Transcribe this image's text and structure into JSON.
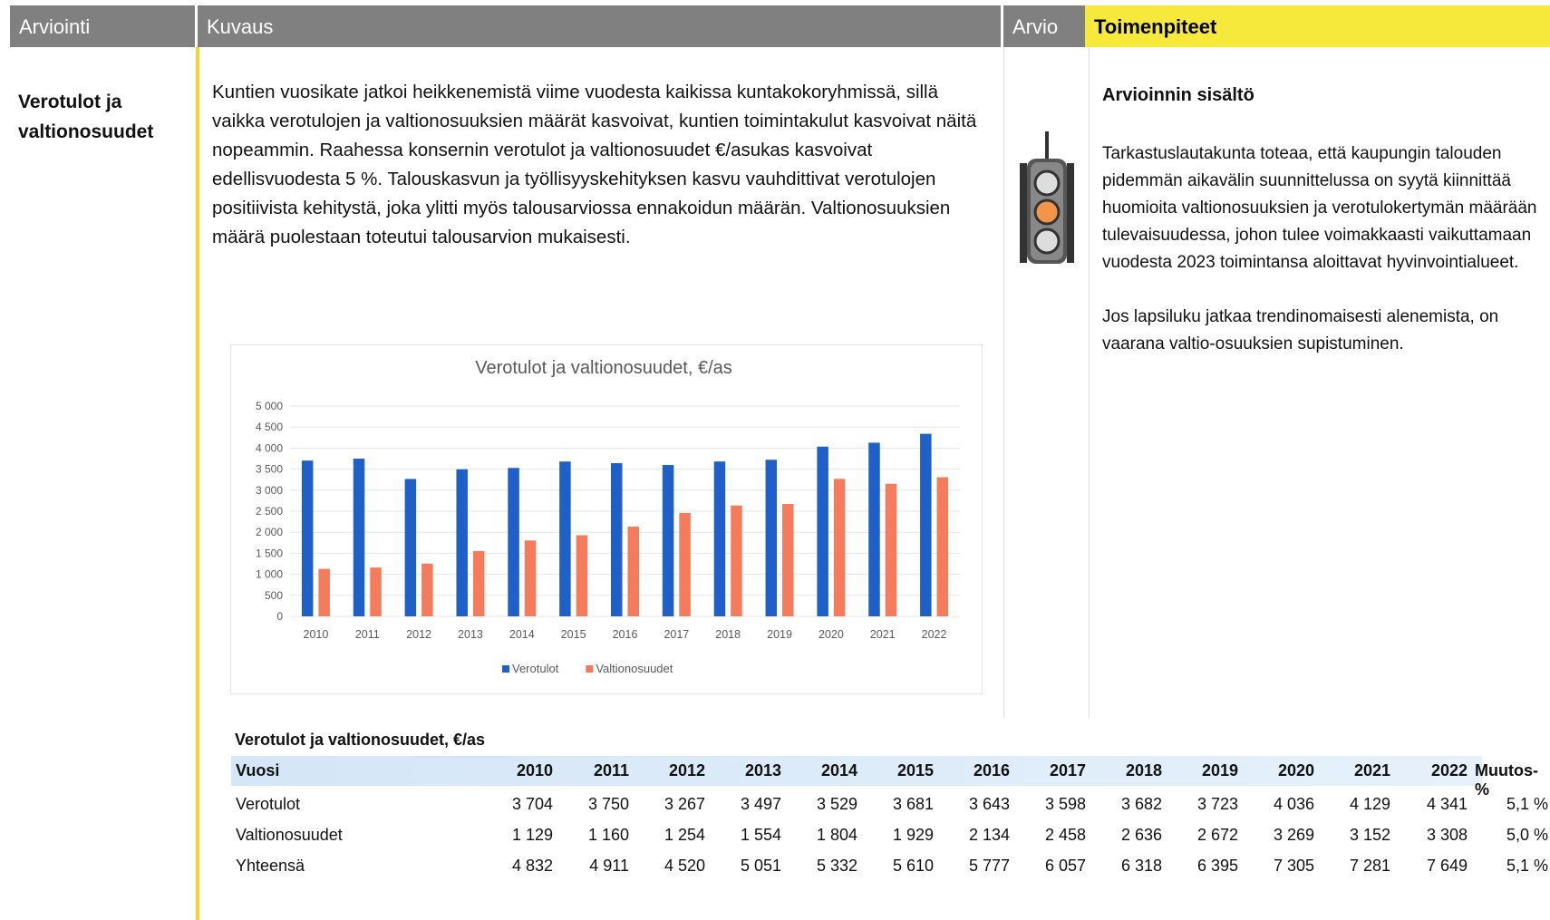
{
  "header": {
    "columns": [
      "Arviointi",
      "Kuvaus",
      "Arvio",
      "Toimenpiteet"
    ]
  },
  "topic": "Verotulot ja valtionosuudet",
  "description": "Kuntien vuosikate jatkoi heikkenemistä viime vuodesta kaikissa kuntakokoryhmissä, sillä vaikka verotulojen ja valtionosuuksien määrät kasvoivat, kuntien toimintakulut kasvoivat näitä nopeammin. Raahessa konsernin verotulot ja valtionosuudet €/asukas kasvoivat edellisvuodesta 5 %. Talouskasvun ja työllisyyskehityksen kasvu vauhdittivat verotulojen positiivista kehitystä, joka ylitti myös talousarviossa ennakoidun määrän. Valtionosuuksien määrä puolestaan toteutui talousarvion mukaisesti.",
  "chart": {
    "type": "bar",
    "title": "Verotulot ja valtionosuudet, €/as",
    "categories": [
      "2010",
      "2011",
      "2012",
      "2013",
      "2014",
      "2015",
      "2016",
      "2017",
      "2018",
      "2019",
      "2020",
      "2021",
      "2022"
    ],
    "series": [
      {
        "name": "Verotulot",
        "color": "#1f5fc8",
        "values": [
          3704,
          3750,
          3267,
          3497,
          3529,
          3681,
          3643,
          3598,
          3682,
          3723,
          4036,
          4129,
          4341
        ]
      },
      {
        "name": "Valtionosuudet",
        "color": "#f47b5c",
        "values": [
          1129,
          1160,
          1254,
          1554,
          1804,
          1929,
          2134,
          2458,
          2636,
          2672,
          3269,
          3152,
          3308
        ]
      }
    ],
    "ylim": [
      0,
      5000
    ],
    "yticks": [
      0,
      500,
      {
        "value": 1000,
        "label": "1 000"
      },
      {
        "value": 1500,
        "label": "1 500"
      },
      {
        "value": 2000,
        "label": "2 000"
      },
      {
        "value": 2500,
        "label": "2 500"
      },
      {
        "value": 3000,
        "label": "3 000"
      },
      {
        "value": 3500,
        "label": "3 500"
      },
      {
        "value": 4000,
        "label": "4 000"
      },
      {
        "value": 4500,
        "label": "4 500"
      },
      {
        "value": 5000,
        "label": "5 000"
      }
    ],
    "grid": true,
    "legend": "bottom"
  },
  "assessment": {
    "title": "Arvioinnin sisältö",
    "paragraphs": [
      "Tarkastuslautakunta toteaa, että kaupungin talouden pidemmän aikavälin suunnittelussa on syytä kiinnittää huomioita valtionosuuksien ja verotulokertymän määrään tulevaisuudessa, johon tulee voimakkaasti vaikuttamaan vuodesta 2023 toimintansa aloittavat hyvinvointialueet.",
      "Jos lapsiluku jatkaa trendinomaisesti alenemista, on vaarana valtio-osuuksien supistuminen."
    ]
  },
  "table": {
    "title": "Verotulot ja valtionosuudet, €/as",
    "header": [
      "Vuosi",
      "2010",
      "2011",
      "2012",
      "2013",
      "2014",
      "2015",
      "2016",
      "2017",
      "2018",
      "2019",
      "2020",
      "2021",
      "2022",
      "Muutos-%"
    ],
    "rows": [
      [
        "Verotulot",
        "3 704",
        "3 750",
        "3 267",
        "3 497",
        "3 529",
        "3 681",
        "3 643",
        "3 598",
        "3 682",
        "3 723",
        "4 036",
        "4 129",
        "4 341",
        "5,1 %"
      ],
      [
        "Valtionosuudet",
        "1 129",
        "1 160",
        "1 254",
        "1 554",
        "1 804",
        "1 929",
        "2 134",
        "2 458",
        "2 636",
        "2 672",
        "3 269",
        "3 152",
        "3 308",
        "5,0 %"
      ],
      [
        "Yhteensä",
        "4 832",
        "4 911",
        "4 520",
        "5 051",
        "5 332",
        "5 610",
        "5 777",
        "6 057",
        "6 318",
        "6 395",
        "7 305",
        "7 281",
        "7 649",
        "5,1 %"
      ]
    ]
  }
}
